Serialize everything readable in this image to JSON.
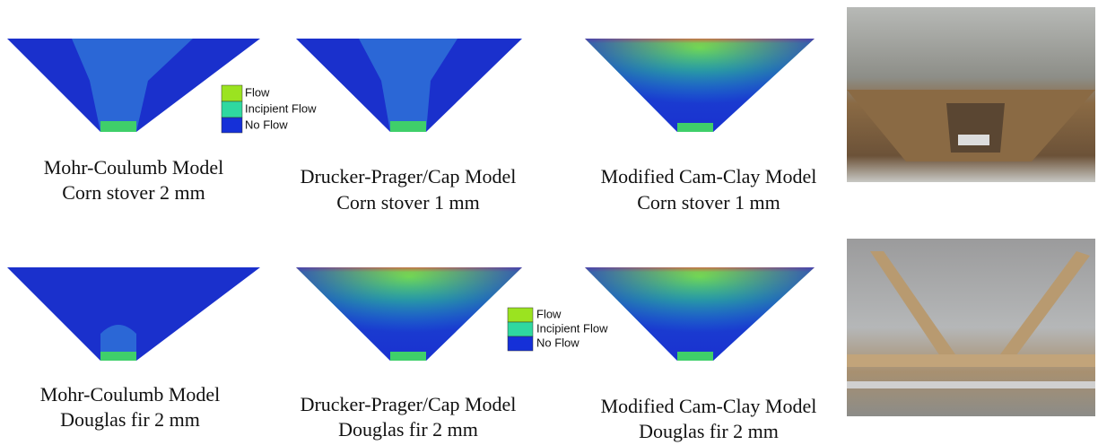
{
  "rows": [
    {
      "panels": [
        {
          "caption": [
            "Mohr-Coulumb Model",
            "Corn stover 2 mm"
          ]
        },
        {
          "caption": [
            "Drucker-Prager/Cap Model",
            "Corn stover 1 mm"
          ]
        },
        {
          "caption": [
            "Modified Cam-Clay Model",
            "Corn stover 1 mm"
          ]
        }
      ]
    },
    {
      "panels": [
        {
          "caption": [
            "Mohr-Coulumb Model",
            "Douglas fir 2 mm"
          ]
        },
        {
          "caption": [
            "Drucker-Prager/Cap Model",
            "Douglas fir 2 mm"
          ]
        },
        {
          "caption": [
            "Modified Cam-Clay Model",
            "Douglas fir 2 mm"
          ]
        }
      ]
    }
  ],
  "legends": [
    [
      "Flow",
      "Incipient Flow",
      "No Flow"
    ],
    [
      "Flow",
      "Incipient Flow",
      "No Flow"
    ]
  ]
}
